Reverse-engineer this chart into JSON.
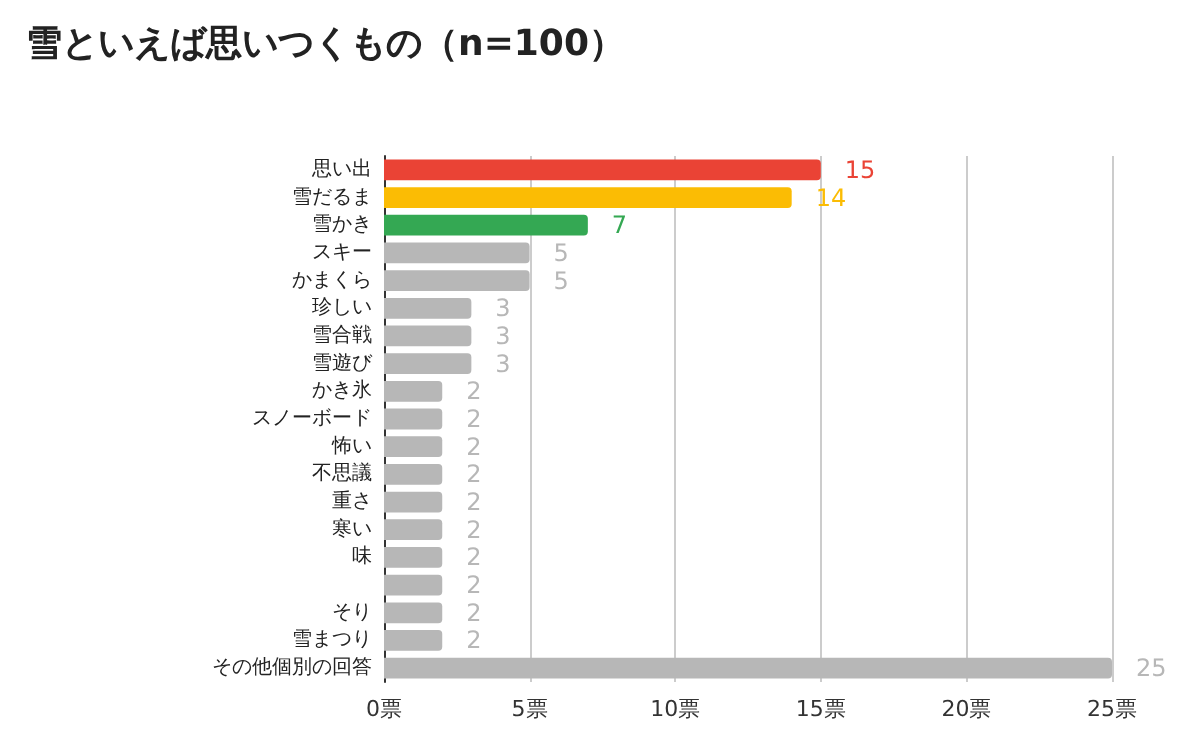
{
  "chart_data": {
    "type": "bar",
    "orientation": "horizontal",
    "title": "雪といえば思いつくもの（n=100）",
    "categories": [
      "思い出",
      "雪だるま",
      "雪かき",
      "スキー",
      "かまくら",
      "珍しい",
      "雪合戦",
      "雪遊び",
      "かき氷",
      "スノーボード",
      "怖い",
      "不思議",
      "重さ",
      "寒い",
      "味",
      null,
      "そり",
      "雪まつり",
      "その他個別の回答"
    ],
    "values": [
      15,
      14,
      7,
      5,
      5,
      3,
      3,
      3,
      2,
      2,
      2,
      2,
      2,
      2,
      2,
      2,
      2,
      2,
      25
    ],
    "colors": [
      "#ea4335",
      "#fbbc04",
      "#34a853",
      "#b7b7b7",
      "#b7b7b7",
      "#b7b7b7",
      "#b7b7b7",
      "#b7b7b7",
      "#b7b7b7",
      "#b7b7b7",
      "#b7b7b7",
      "#b7b7b7",
      "#b7b7b7",
      "#b7b7b7",
      "#b7b7b7",
      "#b7b7b7",
      "#b7b7b7",
      "#b7b7b7",
      "#b7b7b7"
    ],
    "xlim": [
      0,
      25
    ],
    "xticks": [
      {
        "value": 0,
        "label": "0票"
      },
      {
        "value": 5,
        "label": "5票"
      },
      {
        "value": 10,
        "label": "10票"
      },
      {
        "value": 15,
        "label": "15票"
      },
      {
        "value": 20,
        "label": "20票"
      },
      {
        "value": 25,
        "label": "25票"
      }
    ],
    "grid": "x",
    "data_labels": true
  }
}
